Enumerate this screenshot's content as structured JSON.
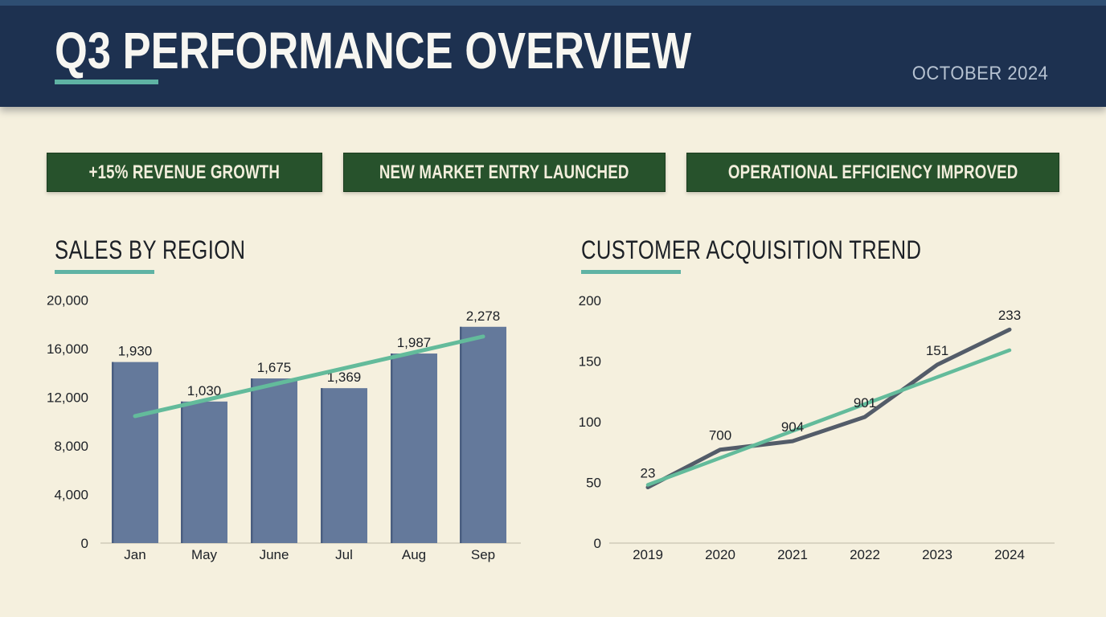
{
  "header": {
    "title": "Q3 PERFORMANCE OVERVIEW",
    "date": "OCTOBER 2024"
  },
  "banners": [
    {
      "label": "+15% REVENUE GROWTH"
    },
    {
      "label": "NEW MARKET ENTRY LAUNCHED"
    },
    {
      "label": "OPERATIONAL EFFICIENCY IMPROVED"
    }
  ],
  "colors": {
    "background": "#F5F0DE",
    "header_bg": "#1D3150",
    "header_strip": "#2E4E72",
    "title_text": "#F7F6F1",
    "header_date_color": "#B6C2D1",
    "accent_teal": "#5FB3A4",
    "banner_green": "#27522C",
    "banner_border": "#1B3D1F",
    "banner_text": "#F2EEDC",
    "bar_fill": "#64799B",
    "bar_edge": "#4A5E80",
    "dark_line": "#535C69",
    "trend_line": "#63BB9B",
    "axis_line": "#D9D4C2",
    "text_dark": "#1C2026"
  },
  "chart_data": [
    {
      "type": "bar",
      "title": "SALES BY REGION",
      "categories": [
        "Jan",
        "May",
        "June",
        "Jul",
        "Aug",
        "Sep"
      ],
      "values": [
        1930,
        1030,
        1675,
        1369,
        1987,
        2278
      ],
      "value_labels": [
        "1,930",
        "1,030",
        "1,675",
        "1,369",
        "1,987",
        "2,278"
      ],
      "bar_heights_axis_units": [
        14900,
        11650,
        13550,
        12750,
        15600,
        17800
      ],
      "y_ticks": [
        20000,
        16000,
        12000,
        8000,
        4000,
        0
      ],
      "y_tick_labels": [
        "20,000",
        "16,000",
        "12,000",
        "8,000",
        "4,000",
        "0"
      ],
      "ylim": [
        0,
        20000
      ],
      "xlabel": "",
      "ylabel": "",
      "grid": false,
      "legend": "none",
      "bar_color": "#64799B",
      "trendline": {
        "start_value": 10450,
        "end_value": 17000,
        "color": "#63BB9B"
      }
    },
    {
      "type": "line",
      "title": "CUSTOMER ACQUISITION TREND",
      "categories": [
        "2019",
        "2020",
        "2021",
        "2022",
        "2023",
        "2024"
      ],
      "values": [
        23,
        700,
        904,
        901,
        151,
        233
      ],
      "value_labels": [
        "23",
        "700",
        "904",
        "901",
        "151",
        "233"
      ],
      "points_axis_units": [
        46,
        77,
        84,
        104,
        147,
        176
      ],
      "y_ticks": [
        200,
        150,
        100,
        50,
        0
      ],
      "y_tick_labels": [
        "200",
        "150",
        "100",
        "50",
        "0"
      ],
      "ylim": [
        0,
        200
      ],
      "xlabel": "",
      "ylabel": "",
      "grid": false,
      "legend": "none",
      "line_color": "#535C69",
      "trendline": {
        "start_value": 48,
        "end_value": 159,
        "color": "#63BB9B"
      }
    }
  ]
}
